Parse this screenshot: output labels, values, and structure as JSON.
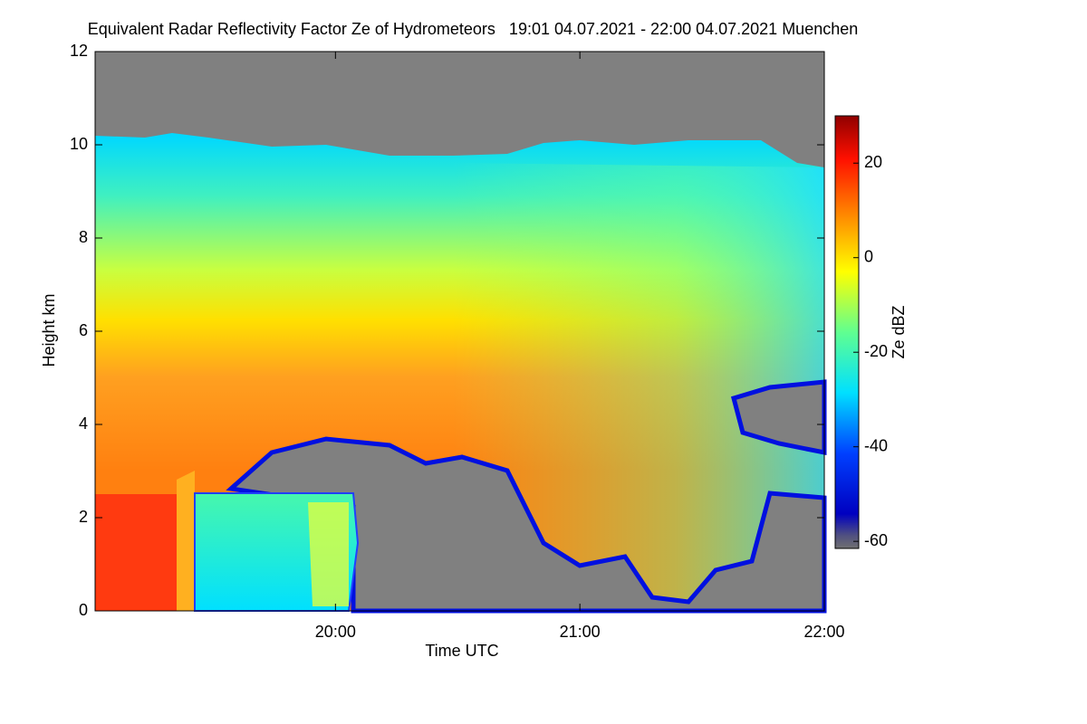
{
  "chart_data": {
    "type": "heatmap",
    "title": "Equivalent Radar Reflectivity Factor Ze of Hydrometeors   19:01 04.07.2021 - 22:00 04.07.2021 Muenchen",
    "xlabel": "Time UTC",
    "ylabel": "Height km",
    "colorbar_label": "Ze dBZ",
    "xlim": [
      19.0167,
      22
    ],
    "xticks": [
      {
        "value": 20,
        "label": "20:00"
      },
      {
        "value": 21,
        "label": "21:00"
      },
      {
        "value": 22,
        "label": "22:00"
      }
    ],
    "ylim": [
      0,
      12
    ],
    "yticks": [
      0,
      2,
      4,
      6,
      8,
      10,
      12
    ],
    "clim": [
      -61.5,
      30
    ],
    "cticks": [
      20,
      0,
      -20,
      -40,
      -60
    ]
  }
}
